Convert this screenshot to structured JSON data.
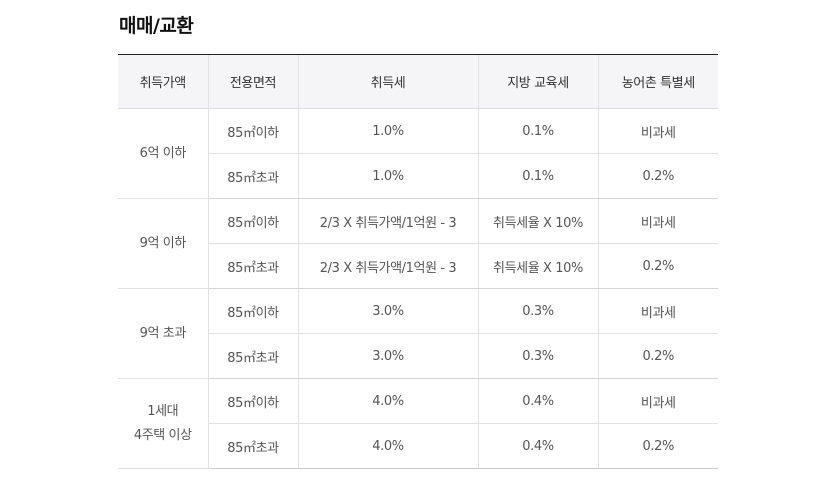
{
  "title": "매매/교환",
  "table": {
    "headers": [
      "취득가액",
      "전용면적",
      "취득세",
      "지방 교육세",
      "농어촌 특별세"
    ],
    "groups": [
      {
        "price_lines": [
          "6억 이하"
        ],
        "rows": [
          {
            "area": "85㎡이하",
            "acq_tax": "1.0%",
            "edu_tax": "0.1%",
            "rural_tax": "비과세"
          },
          {
            "area": "85㎡초과",
            "acq_tax": "1.0%",
            "edu_tax": "0.1%",
            "rural_tax": "0.2%"
          }
        ]
      },
      {
        "price_lines": [
          "9억 이하"
        ],
        "rows": [
          {
            "area": "85㎡이하",
            "acq_tax": "2/3 X 취득가액/1억원 - 3",
            "edu_tax": "취득세율 X 10%",
            "rural_tax": "비과세"
          },
          {
            "area": "85㎡초과",
            "acq_tax": "2/3 X 취득가액/1억원 - 3",
            "edu_tax": "취득세율 X 10%",
            "rural_tax": "0.2%"
          }
        ]
      },
      {
        "price_lines": [
          "9억 초과"
        ],
        "rows": [
          {
            "area": "85㎡이하",
            "acq_tax": "3.0%",
            "edu_tax": "0.3%",
            "rural_tax": "비과세"
          },
          {
            "area": "85㎡초과",
            "acq_tax": "3.0%",
            "edu_tax": "0.3%",
            "rural_tax": "0.2%"
          }
        ]
      },
      {
        "price_lines": [
          "1세대",
          "4주택 이상"
        ],
        "rows": [
          {
            "area": "85㎡이하",
            "acq_tax": "4.0%",
            "edu_tax": "0.4%",
            "rural_tax": "비과세"
          },
          {
            "area": "85㎡초과",
            "acq_tax": "4.0%",
            "edu_tax": "0.4%",
            "rural_tax": "0.2%"
          }
        ]
      }
    ]
  }
}
